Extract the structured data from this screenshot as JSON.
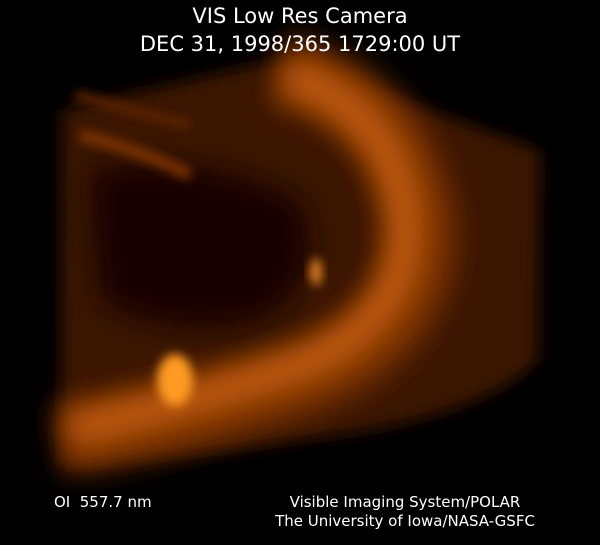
{
  "header": {
    "title": "VIS Low Res Camera",
    "timestamp": "DEC 31, 1998/365 1729:00 UT"
  },
  "footer": {
    "filter": "OI  557.7 nm",
    "credit_1": "Visible Imaging System/POLAR",
    "credit_2": "The University of Iowa/NASA-GSFC"
  }
}
